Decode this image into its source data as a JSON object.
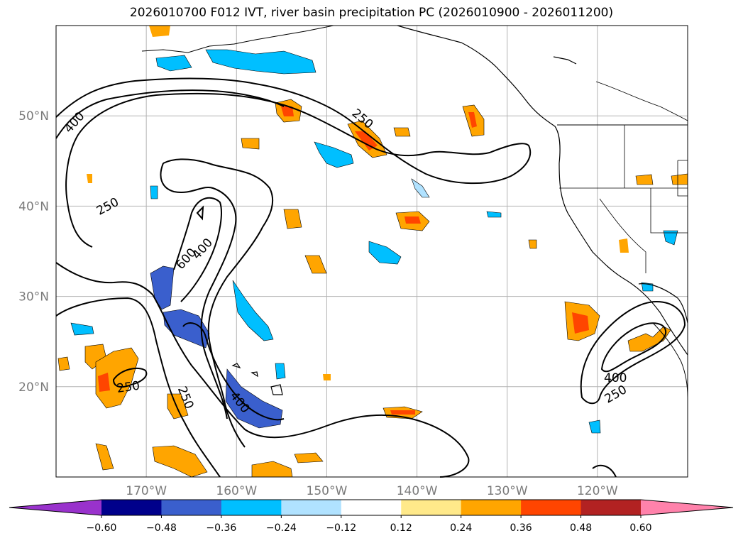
{
  "title": "2026010700 F012 IVT, river basin precipitation PC (2026010900 - 2026011200)",
  "chart_data": {
    "type": "map",
    "title": "2026010700 F012 IVT, river basin precipitation PC (2026010900 - 2026011200)",
    "lon_range": [
      -180,
      -110
    ],
    "lat_range": [
      10,
      60
    ],
    "lat_ticks": [
      {
        "value": 20,
        "label": "20°N"
      },
      {
        "value": 30,
        "label": "30°N"
      },
      {
        "value": 40,
        "label": "40°N"
      },
      {
        "value": 50,
        "label": "50°N"
      }
    ],
    "lon_ticks": [
      {
        "value": -170,
        "label": "170°W"
      },
      {
        "value": -160,
        "label": "160°W"
      },
      {
        "value": -150,
        "label": "150°W"
      },
      {
        "value": -140,
        "label": "140°W"
      },
      {
        "value": -130,
        "label": "130°W"
      },
      {
        "value": -120,
        "label": "120°W"
      }
    ],
    "colorbar": {
      "boundaries": [
        -0.6,
        -0.48,
        -0.36,
        -0.24,
        -0.12,
        0.12,
        0.24,
        0.36,
        0.48,
        0.6
      ],
      "labels": [
        "−0.60",
        "−0.48",
        "−0.36",
        "−0.24",
        "−0.12",
        "0.12",
        "0.24",
        "0.36",
        "0.48",
        "0.60"
      ],
      "colors": [
        "#9932cc",
        "#00008b",
        "#3a5fcd",
        "#00bfff",
        "#b0e2ff",
        "#ffffff",
        "#ffe98a",
        "#ffa500",
        "#ff4500",
        "#b22222",
        "#ff82ab"
      ],
      "extend": "both"
    },
    "ivt_contour_labels": [
      {
        "value": "400",
        "lon": -178.0,
        "lat": 49.3,
        "angle": -48
      },
      {
        "value": "250",
        "lon": -146.0,
        "lat": 49.7,
        "angle": 40
      },
      {
        "value": "250",
        "lon": -174.3,
        "lat": 40.0,
        "angle": -28
      },
      {
        "value": "600",
        "lon": -165.6,
        "lat": 34.2,
        "angle": -48
      },
      {
        "value": "400",
        "lon": -163.8,
        "lat": 35.3,
        "angle": -48
      },
      {
        "value": "250",
        "lon": -172.0,
        "lat": 20.0,
        "angle": -8
      },
      {
        "value": "250",
        "lon": -165.6,
        "lat": 18.8,
        "angle": 68
      },
      {
        "value": "400",
        "lon": -159.6,
        "lat": 18.3,
        "angle": 52
      },
      {
        "value": "400",
        "lon": -118.0,
        "lat": 21.0,
        "angle": 0
      },
      {
        "value": "250",
        "lon": -118.0,
        "lat": 19.2,
        "angle": -30
      }
    ]
  }
}
